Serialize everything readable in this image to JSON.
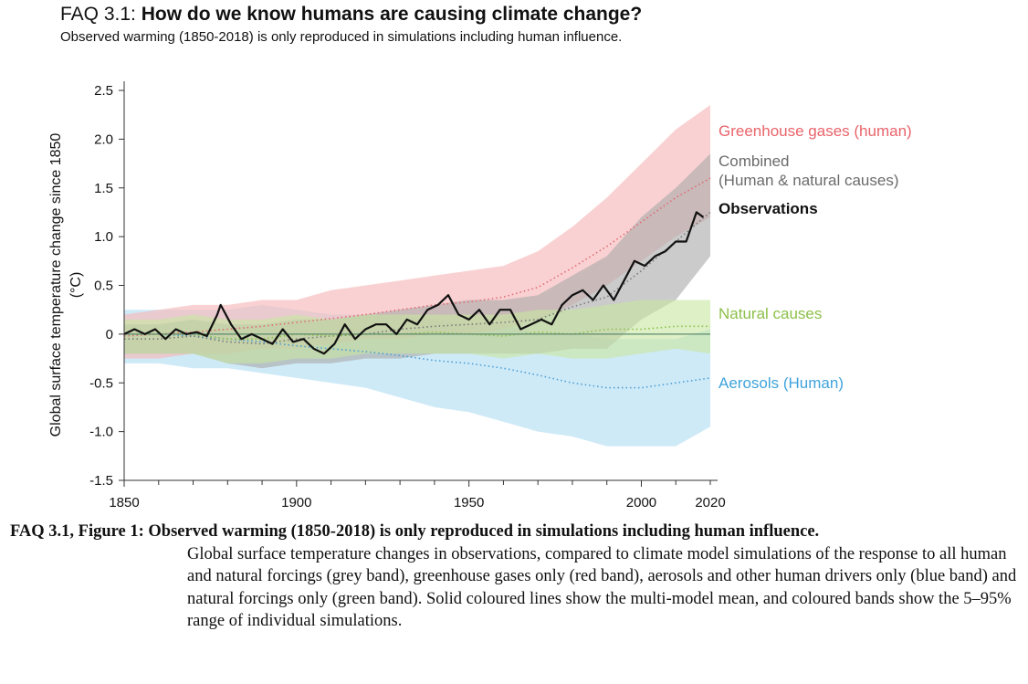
{
  "header": {
    "title_prefix": "FAQ 3.1:",
    "title_main": "How do we know humans are causing climate change?",
    "subtitle": "Observed warming (1850-2018) is only reproduced in simulations including human influence."
  },
  "caption": {
    "heading": "FAQ 3.1, Figure 1: Observed warming (1850-2018) is only reproduced in simulations including human influence.",
    "body": "Global surface temperature changes in observations, compared to climate model simulations of the response to all human and natural forcings (grey band), greenhouse gases only (red band), aerosols and other human drivers only (blue band) and natural forcings only (green band). Solid coloured lines show the multi-model mean, and coloured bands show the 5–95% range of individual simulations."
  },
  "colors": {
    "ghg_band": "#f6b8ba",
    "ghg_line": "#e06b74",
    "combined_band": "#a9a9a9",
    "combined_line": "#7a7a7a",
    "aerosol_band": "#b5dff3",
    "aerosol_line": "#4a9ed6",
    "natural_band": "#c8e6a0",
    "natural_line": "#8cc04a",
    "observations": "#111111",
    "ghg_label": "#e8636a",
    "combined_label": "#6b6b6b",
    "natural_label": "#8cc04a",
    "aerosol_label": "#3fa3dc"
  },
  "chart_data": {
    "type": "area",
    "title": "FAQ 3.1: How do we know humans are causing climate change?",
    "xlabel": "",
    "ylabel": "Global surface temperature change since 1850 (°C)",
    "xlim": [
      1850,
      2020
    ],
    "ylim": [
      -1.5,
      2.5
    ],
    "x_ticks": [
      1850,
      1900,
      1950,
      2000,
      2020
    ],
    "y_ticks": [
      -1.5,
      -1.0,
      -0.5,
      0,
      0.5,
      1.0,
      1.5,
      2.0,
      2.5
    ],
    "y_tick_labels": [
      "-1.5",
      "-1.0",
      "-0.5",
      "0",
      "0.5",
      "1.0",
      "1.5",
      "2.0",
      "2.5"
    ],
    "grid": false,
    "legend": "right-side labels",
    "zero_line": 0,
    "bands": [
      {
        "name": "Greenhouse gases (human)",
        "x": [
          1850,
          1860,
          1870,
          1880,
          1890,
          1900,
          1910,
          1920,
          1930,
          1940,
          1950,
          1960,
          1970,
          1980,
          1990,
          2000,
          2010,
          2020
        ],
        "lower": [
          -0.25,
          -0.25,
          -0.2,
          -0.2,
          -0.15,
          -0.15,
          -0.1,
          -0.05,
          -0.05,
          0.0,
          0.0,
          0.05,
          0.15,
          0.3,
          0.5,
          0.75,
          1.0,
          1.2
        ],
        "upper": [
          0.2,
          0.25,
          0.3,
          0.3,
          0.35,
          0.35,
          0.45,
          0.5,
          0.55,
          0.6,
          0.65,
          0.7,
          0.85,
          1.1,
          1.4,
          1.75,
          2.1,
          2.35
        ],
        "mean": [
          -0.02,
          0.0,
          0.02,
          0.05,
          0.08,
          0.12,
          0.16,
          0.2,
          0.25,
          0.3,
          0.33,
          0.38,
          0.48,
          0.68,
          0.9,
          1.15,
          1.4,
          1.6
        ]
      },
      {
        "name": "Combined (Human & natural causes)",
        "x": [
          1850,
          1860,
          1870,
          1880,
          1890,
          1900,
          1910,
          1920,
          1930,
          1940,
          1950,
          1960,
          1970,
          1980,
          1990,
          2000,
          2010,
          2020
        ],
        "lower": [
          -0.2,
          -0.2,
          -0.2,
          -0.3,
          -0.35,
          -0.3,
          -0.3,
          -0.25,
          -0.25,
          -0.2,
          -0.2,
          -0.2,
          -0.2,
          -0.15,
          -0.15,
          0.15,
          0.35,
          0.8
        ],
        "upper": [
          0.1,
          0.1,
          0.15,
          0.1,
          0.1,
          0.15,
          0.15,
          0.2,
          0.25,
          0.3,
          0.35,
          0.35,
          0.4,
          0.6,
          0.8,
          1.2,
          1.5,
          1.85
        ],
        "mean": [
          -0.05,
          -0.05,
          -0.02,
          -0.08,
          -0.1,
          -0.05,
          -0.02,
          0.0,
          0.05,
          0.08,
          0.1,
          0.12,
          0.15,
          0.28,
          0.38,
          0.65,
          0.95,
          1.25
        ]
      },
      {
        "name": "Natural causes",
        "x": [
          1850,
          1860,
          1870,
          1880,
          1890,
          1900,
          1910,
          1920,
          1930,
          1940,
          1950,
          1960,
          1970,
          1980,
          1990,
          2000,
          2010,
          2020
        ],
        "lower": [
          -0.2,
          -0.2,
          -0.2,
          -0.3,
          -0.3,
          -0.25,
          -0.25,
          -0.2,
          -0.2,
          -0.2,
          -0.2,
          -0.25,
          -0.2,
          -0.25,
          -0.25,
          -0.2,
          -0.15,
          -0.2
        ],
        "upper": [
          0.15,
          0.15,
          0.2,
          0.15,
          0.15,
          0.2,
          0.15,
          0.2,
          0.2,
          0.2,
          0.2,
          0.2,
          0.25,
          0.25,
          0.3,
          0.35,
          0.35,
          0.35
        ],
        "mean": [
          0.0,
          0.0,
          0.0,
          -0.05,
          -0.05,
          0.0,
          -0.02,
          0.0,
          0.0,
          0.02,
          0.0,
          -0.02,
          0.02,
          0.0,
          0.05,
          0.05,
          0.08,
          0.08
        ]
      },
      {
        "name": "Aerosols (Human)",
        "x": [
          1850,
          1860,
          1870,
          1880,
          1890,
          1900,
          1910,
          1920,
          1930,
          1940,
          1950,
          1960,
          1970,
          1980,
          1990,
          2000,
          2010,
          2020
        ],
        "lower": [
          -0.3,
          -0.3,
          -0.35,
          -0.35,
          -0.4,
          -0.45,
          -0.5,
          -0.55,
          -0.65,
          -0.75,
          -0.8,
          -0.9,
          -1.0,
          -1.05,
          -1.15,
          -1.15,
          -1.15,
          -0.95
        ],
        "upper": [
          0.25,
          0.25,
          0.25,
          0.25,
          0.3,
          0.25,
          0.2,
          0.2,
          0.2,
          0.15,
          0.1,
          0.1,
          0.0,
          0.0,
          -0.05,
          -0.05,
          -0.05,
          0.05
        ],
        "mean": [
          0.0,
          0.0,
          -0.02,
          -0.05,
          -0.08,
          -0.12,
          -0.15,
          -0.18,
          -0.22,
          -0.27,
          -0.3,
          -0.35,
          -0.42,
          -0.5,
          -0.55,
          -0.55,
          -0.5,
          -0.45
        ]
      }
    ],
    "observations": {
      "name": "Observations",
      "x": [
        1850,
        1853,
        1856,
        1859,
        1862,
        1865,
        1868,
        1871,
        1874,
        1877,
        1878,
        1881,
        1884,
        1887,
        1890,
        1893,
        1896,
        1899,
        1902,
        1905,
        1908,
        1911,
        1914,
        1917,
        1920,
        1923,
        1926,
        1929,
        1932,
        1935,
        1938,
        1941,
        1944,
        1947,
        1950,
        1953,
        1956,
        1959,
        1962,
        1965,
        1968,
        1971,
        1974,
        1977,
        1980,
        1983,
        1986,
        1989,
        1992,
        1995,
        1998,
        2001,
        2004,
        2007,
        2010,
        2013,
        2016,
        2018
      ],
      "y": [
        0.0,
        0.05,
        0.0,
        0.05,
        -0.05,
        0.05,
        0.0,
        0.02,
        -0.02,
        0.2,
        0.3,
        0.1,
        -0.05,
        0.0,
        -0.05,
        -0.1,
        0.05,
        -0.08,
        -0.05,
        -0.15,
        -0.2,
        -0.1,
        0.1,
        -0.05,
        0.05,
        0.1,
        0.1,
        0.0,
        0.15,
        0.1,
        0.25,
        0.3,
        0.4,
        0.2,
        0.15,
        0.25,
        0.1,
        0.25,
        0.25,
        0.05,
        0.1,
        0.15,
        0.1,
        0.3,
        0.4,
        0.45,
        0.35,
        0.5,
        0.35,
        0.55,
        0.75,
        0.7,
        0.8,
        0.85,
        0.95,
        0.95,
        1.25,
        1.2
      ]
    },
    "labels": [
      {
        "text": "Greenhouse gases (human)",
        "key": "ghg_label"
      },
      {
        "text": "Combined",
        "key": "combined_label"
      },
      {
        "text": "(Human & natural causes)",
        "key": "combined_label"
      },
      {
        "text": "Observations",
        "key": "observations"
      },
      {
        "text": "Natural causes",
        "key": "natural_label"
      },
      {
        "text": "Aerosols (Human)",
        "key": "aerosol_label"
      }
    ]
  }
}
